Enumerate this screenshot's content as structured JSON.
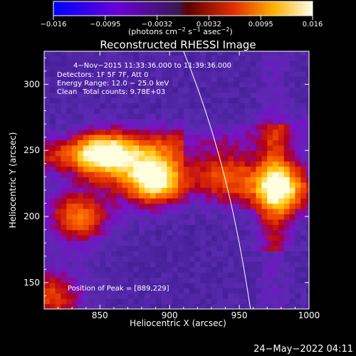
{
  "colorbar": {
    "ticks": [
      "−0.016",
      "−0.0095",
      "−0.0032",
      "0.0032",
      "0.0095",
      "0.016"
    ],
    "units_main": "(photons cm",
    "units_sup1": "−2",
    "units_mid": " s",
    "units_sup2": "−1",
    "units_end": " asec",
    "units_sup3": "−2",
    "units_close": ")"
  },
  "header": {
    "date_range": "4−Nov−2015 11:33:36.000 to 11:39:36.000",
    "detectors": "Detectors: 1F 5F 7F, Att 0",
    "energy": "Energy Range: 12.0 − 25.0 keV",
    "clean": "Clean",
    "counts": "Total counts: 9.78E+03"
  },
  "peak_label": "Position of Peak = [889,229]",
  "footer_timestamp": "24−May−2022 04:11",
  "chart_data": {
    "type": "heatmap",
    "title": "Reconstructed RHESSI Image",
    "xlabel": "Heliocentric X (arcsec)",
    "ylabel": "Heliocentric Y (arcsec)",
    "xlim": [
      810,
      1000
    ],
    "ylim": [
      130,
      325
    ],
    "x_ticks": [
      850,
      900,
      950,
      1000
    ],
    "y_ticks": [
      150,
      200,
      250,
      300
    ],
    "x_tick_labels": [
      "850",
      "900",
      "950",
      "1000"
    ],
    "y_tick_labels": [
      "150",
      "200",
      "250",
      "300"
    ],
    "colorbar_range": [
      -0.016,
      0.016
    ],
    "colormap": [
      "#0000ff",
      "#7a0bd6",
      "#4b2a8c",
      "#c00000",
      "#ff6a00",
      "#ffd000",
      "#ffffe0"
    ],
    "peak": [
      889,
      229
    ],
    "sources": [
      {
        "center": [
          889,
          229
        ],
        "level": 1.0
      },
      {
        "center": [
          853,
          245
        ],
        "level": 0.72
      },
      {
        "center": [
          980,
          222
        ],
        "level": 0.78
      },
      {
        "center": [
          835,
          200
        ],
        "level": 0.55
      },
      {
        "center": [
          940,
          230
        ],
        "level": 0.5
      },
      {
        "center": [
          815,
          140
        ],
        "level": 0.45
      }
    ],
    "limb_curve": [
      [
        910,
        325
      ],
      [
        935,
        260
      ],
      [
        948,
        200
      ],
      [
        958,
        130
      ]
    ]
  }
}
